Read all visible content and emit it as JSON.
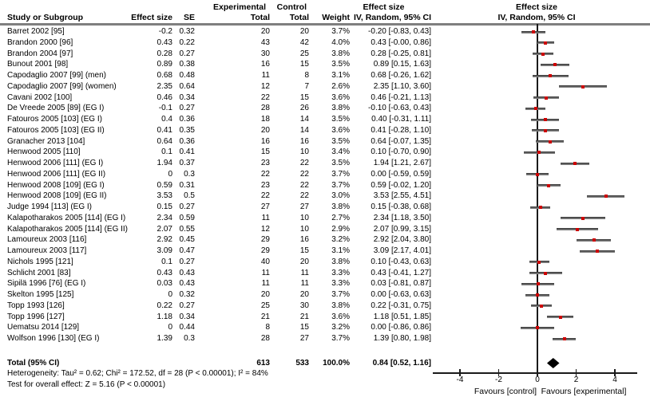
{
  "header": {
    "col_study": "Study or Subgroup",
    "col_effect": "Effect size",
    "col_se": "SE",
    "group_experimental": "Experimental",
    "group_control": "Control",
    "col_total_exp": "Total",
    "col_total_ctrl": "Total",
    "col_weight": "Weight",
    "effect_col_title": "Effect size",
    "effect_col_subtitle": "IV, Random, 95% CI",
    "plot_col_title": "Effect size",
    "plot_col_subtitle": "IV, Random, 95% CI"
  },
  "chart_data": {
    "type": "forest",
    "title": "Effect size IV, Random, 95% CI",
    "xlim": [
      -5.4,
      5.2
    ],
    "axis_ticks": [
      -4,
      -2,
      0,
      2,
      4
    ],
    "favours_left": "Favours [control]",
    "favours_right": "Favours [experimental]",
    "colors": {
      "marker": "#cc0000",
      "ci_line": "#3a3a3a",
      "diamond": "#000000",
      "header_rule": "#7f7f7f"
    },
    "studies": [
      {
        "name": "Barret 2002 [95]",
        "effect": "-0.2",
        "se": "0.32",
        "exp_total": "20",
        "ctrl_total": "20",
        "weight": "3.7%",
        "ci_text": "-0.20 [-0.83, 0.43]",
        "est": -0.2,
        "lo": -0.83,
        "hi": 0.43
      },
      {
        "name": "Brandon 2000 [96]",
        "effect": "0.43",
        "se": "0.22",
        "exp_total": "43",
        "ctrl_total": "42",
        "weight": "4.0%",
        "ci_text": "0.43 [-0.00, 0.86]",
        "est": 0.43,
        "lo": 0.0,
        "hi": 0.86
      },
      {
        "name": "Brandon 2004 [97]",
        "effect": "0.28",
        "se": "0.27",
        "exp_total": "30",
        "ctrl_total": "25",
        "weight": "3.8%",
        "ci_text": "0.28 [-0.25, 0.81]",
        "est": 0.28,
        "lo": -0.25,
        "hi": 0.81
      },
      {
        "name": "Bunout 2001 [98]",
        "effect": "0.89",
        "se": "0.38",
        "exp_total": "16",
        "ctrl_total": "15",
        "weight": "3.5%",
        "ci_text": "0.89 [0.15, 1.63]",
        "est": 0.89,
        "lo": 0.15,
        "hi": 1.63
      },
      {
        "name": "Capodaglio 2007 [99] (men)",
        "effect": "0.68",
        "se": "0.48",
        "exp_total": "11",
        "ctrl_total": "8",
        "weight": "3.1%",
        "ci_text": "0.68 [-0.26, 1.62]",
        "est": 0.68,
        "lo": -0.26,
        "hi": 1.62
      },
      {
        "name": "Capodaglio 2007 [99] (women)",
        "effect": "2.35",
        "se": "0.64",
        "exp_total": "12",
        "ctrl_total": "7",
        "weight": "2.6%",
        "ci_text": "2.35 [1.10, 3.60]",
        "est": 2.35,
        "lo": 1.1,
        "hi": 3.6
      },
      {
        "name": "Cavani 2002 [100]",
        "effect": "0.46",
        "se": "0.34",
        "exp_total": "22",
        "ctrl_total": "15",
        "weight": "3.6%",
        "ci_text": "0.46 [-0.21, 1.13]",
        "est": 0.46,
        "lo": -0.21,
        "hi": 1.13
      },
      {
        "name": "De Vreede 2005 [89] (EG I)",
        "effect": "-0.1",
        "se": "0.27",
        "exp_total": "28",
        "ctrl_total": "26",
        "weight": "3.8%",
        "ci_text": "-0.10 [-0.63, 0.43]",
        "est": -0.1,
        "lo": -0.63,
        "hi": 0.43
      },
      {
        "name": "Fatouros 2005 [103] (EG I)",
        "effect": "0.4",
        "se": "0.36",
        "exp_total": "18",
        "ctrl_total": "14",
        "weight": "3.5%",
        "ci_text": "0.40 [-0.31, 1.11]",
        "est": 0.4,
        "lo": -0.31,
        "hi": 1.11
      },
      {
        "name": "Fatouros 2005 [103] (EG II)",
        "effect": "0.41",
        "se": "0.35",
        "exp_total": "20",
        "ctrl_total": "14",
        "weight": "3.6%",
        "ci_text": "0.41 [-0.28, 1.10]",
        "est": 0.41,
        "lo": -0.28,
        "hi": 1.1
      },
      {
        "name": "Granacher 2013 [104]",
        "effect": "0.64",
        "se": "0.36",
        "exp_total": "16",
        "ctrl_total": "16",
        "weight": "3.5%",
        "ci_text": "0.64 [-0.07, 1.35]",
        "est": 0.64,
        "lo": -0.07,
        "hi": 1.35
      },
      {
        "name": "Henwood 2005 [110]",
        "effect": "0.1",
        "se": "0.41",
        "exp_total": "15",
        "ctrl_total": "10",
        "weight": "3.4%",
        "ci_text": "0.10 [-0.70, 0.90]",
        "est": 0.1,
        "lo": -0.7,
        "hi": 0.9
      },
      {
        "name": "Henwood 2006 [111] (EG I)",
        "effect": "1.94",
        "se": "0.37",
        "exp_total": "23",
        "ctrl_total": "22",
        "weight": "3.5%",
        "ci_text": "1.94 [1.21, 2.67]",
        "est": 1.94,
        "lo": 1.21,
        "hi": 2.67
      },
      {
        "name": "Henwood 2006 [111] (EG II)",
        "effect": "0",
        "se": "0.3",
        "exp_total": "22",
        "ctrl_total": "22",
        "weight": "3.7%",
        "ci_text": "0.00 [-0.59, 0.59]",
        "est": 0,
        "lo": -0.59,
        "hi": 0.59
      },
      {
        "name": "Henwood 2008 [109] (EG I)",
        "effect": "0.59",
        "se": "0.31",
        "exp_total": "23",
        "ctrl_total": "22",
        "weight": "3.7%",
        "ci_text": "0.59 [-0.02, 1.20]",
        "est": 0.59,
        "lo": -0.02,
        "hi": 1.2
      },
      {
        "name": "Henwood 2008 [109] (EG II)",
        "effect": "3.53",
        "se": "0.5",
        "exp_total": "22",
        "ctrl_total": "22",
        "weight": "3.0%",
        "ci_text": "3.53 [2.55, 4.51]",
        "est": 3.53,
        "lo": 2.55,
        "hi": 4.51
      },
      {
        "name": "Judge 1994 [113] (EG I)",
        "effect": "0.15",
        "se": "0.27",
        "exp_total": "27",
        "ctrl_total": "27",
        "weight": "3.8%",
        "ci_text": "0.15 [-0.38, 0.68]",
        "est": 0.15,
        "lo": -0.38,
        "hi": 0.68
      },
      {
        "name": "Kalapotharakos 2005 [114] (EG I)",
        "effect": "2.34",
        "se": "0.59",
        "exp_total": "11",
        "ctrl_total": "10",
        "weight": "2.7%",
        "ci_text": "2.34 [1.18, 3.50]",
        "est": 2.34,
        "lo": 1.18,
        "hi": 3.5
      },
      {
        "name": "Kalapotharakos 2005 [114] (EG II)",
        "effect": "2.07",
        "se": "0.55",
        "exp_total": "12",
        "ctrl_total": "10",
        "weight": "2.9%",
        "ci_text": "2.07 [0.99, 3.15]",
        "est": 2.07,
        "lo": 0.99,
        "hi": 3.15
      },
      {
        "name": "Lamoureux 2003 [116]",
        "effect": "2.92",
        "se": "0.45",
        "exp_total": "29",
        "ctrl_total": "16",
        "weight": "3.2%",
        "ci_text": "2.92 [2.04, 3.80]",
        "est": 2.92,
        "lo": 2.04,
        "hi": 3.8
      },
      {
        "name": "Lamoureux 2003 [117]",
        "effect": "3.09",
        "se": "0.47",
        "exp_total": "29",
        "ctrl_total": "15",
        "weight": "3.1%",
        "ci_text": "3.09 [2.17, 4.01]",
        "est": 3.09,
        "lo": 2.17,
        "hi": 4.01
      },
      {
        "name": "Nichols 1995 [121]",
        "effect": "0.1",
        "se": "0.27",
        "exp_total": "40",
        "ctrl_total": "20",
        "weight": "3.8%",
        "ci_text": "0.10 [-0.43, 0.63]",
        "est": 0.1,
        "lo": -0.43,
        "hi": 0.63
      },
      {
        "name": "Schlicht 2001 [83]",
        "effect": "0.43",
        "se": "0.43",
        "exp_total": "11",
        "ctrl_total": "11",
        "weight": "3.3%",
        "ci_text": "0.43 [-0.41, 1.27]",
        "est": 0.43,
        "lo": -0.41,
        "hi": 1.27
      },
      {
        "name": "Sipilä 1996 [76] (EG I)",
        "effect": "0.03",
        "se": "0.43",
        "exp_total": "11",
        "ctrl_total": "11",
        "weight": "3.3%",
        "ci_text": "0.03 [-0.81, 0.87]",
        "est": 0.03,
        "lo": -0.81,
        "hi": 0.87
      },
      {
        "name": "Skelton 1995 [125]",
        "effect": "0",
        "se": "0.32",
        "exp_total": "20",
        "ctrl_total": "20",
        "weight": "3.7%",
        "ci_text": "0.00 [-0.63, 0.63]",
        "est": 0,
        "lo": -0.63,
        "hi": 0.63
      },
      {
        "name": "Topp 1993 [126]",
        "effect": "0.22",
        "se": "0.27",
        "exp_total": "25",
        "ctrl_total": "30",
        "weight": "3.8%",
        "ci_text": "0.22 [-0.31, 0.75]",
        "est": 0.22,
        "lo": -0.31,
        "hi": 0.75
      },
      {
        "name": "Topp 1996 [127]",
        "effect": "1.18",
        "se": "0.34",
        "exp_total": "21",
        "ctrl_total": "21",
        "weight": "3.6%",
        "ci_text": "1.18 [0.51, 1.85]",
        "est": 1.18,
        "lo": 0.51,
        "hi": 1.85
      },
      {
        "name": "Uematsu 2014 [129]",
        "effect": "0",
        "se": "0.44",
        "exp_total": "8",
        "ctrl_total": "15",
        "weight": "3.2%",
        "ci_text": "0.00 [-0.86, 0.86]",
        "est": 0,
        "lo": -0.86,
        "hi": 0.86
      },
      {
        "name": "Wolfson 1996 [130] (EG I)",
        "effect": "1.39",
        "se": "0.3",
        "exp_total": "28",
        "ctrl_total": "27",
        "weight": "3.7%",
        "ci_text": "1.39 [0.80, 1.98]",
        "est": 1.39,
        "lo": 0.8,
        "hi": 1.98
      }
    ],
    "total": {
      "label": "Total (95% CI)",
      "exp_total": "613",
      "ctrl_total": "533",
      "weight": "100.0%",
      "ci_text": "0.84 [0.52, 1.16]",
      "est": 0.84,
      "lo": 0.52,
      "hi": 1.16
    }
  },
  "footer": {
    "heterogeneity": "Heterogeneity: Tau² = 0.62; Chi² = 172.52, df = 28 (P < 0.00001); I² = 84%",
    "overall_effect": "Test for overall effect: Z = 5.16 (P < 0.00001)"
  }
}
